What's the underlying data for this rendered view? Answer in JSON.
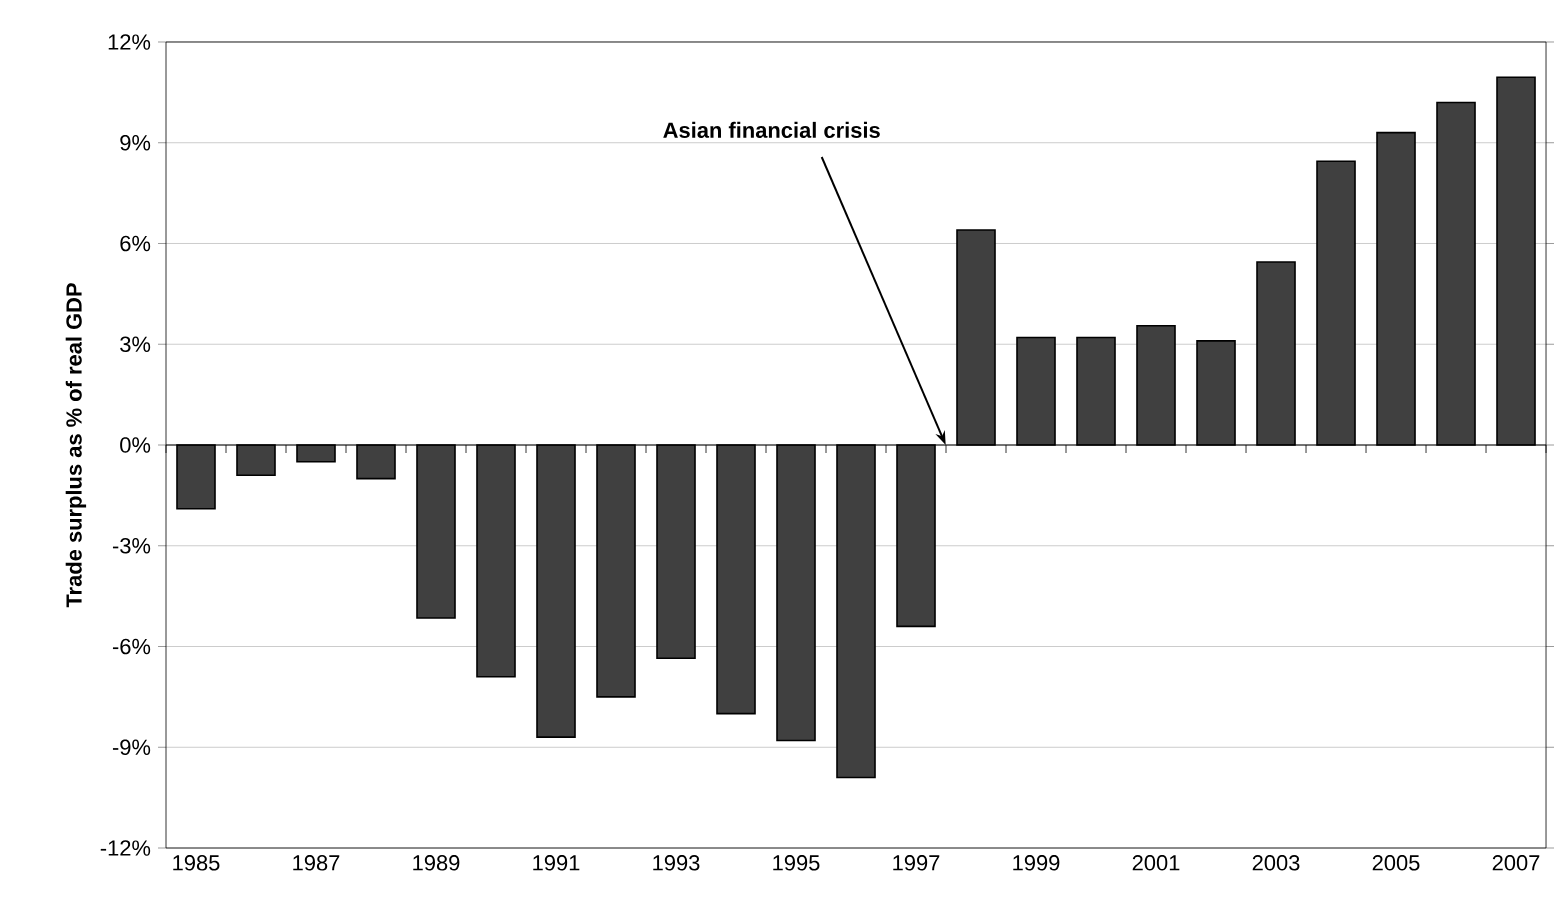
{
  "chart_data": {
    "type": "bar",
    "ylabel": "Trade surplus as % of real GDP",
    "categories": [
      "1985",
      null,
      "1987",
      null,
      "1989",
      null,
      "1991",
      null,
      "1993",
      null,
      "1995",
      null,
      "1997",
      null,
      "1999",
      null,
      "2001",
      null,
      "2003",
      null,
      "2005",
      null,
      "2007"
    ],
    "values": [
      -1.9,
      -0.9,
      -0.5,
      -1.0,
      -5.15,
      -6.9,
      -8.7,
      -7.5,
      -6.35,
      -8.0,
      -8.8,
      -9.9,
      -5.4,
      6.4,
      3.2,
      3.2,
      3.55,
      3.1,
      5.45,
      8.45,
      9.3,
      10.2,
      10.95
    ],
    "color": "#404040",
    "ylim": [
      -12,
      12
    ],
    "yticks": [
      {
        "value": -12,
        "label": "-12%"
      },
      {
        "value": -9,
        "label": "-9%"
      },
      {
        "value": -6,
        "label": "-6%"
      },
      {
        "value": -3,
        "label": "-3%"
      },
      {
        "value": 0,
        "label": "0%"
      },
      {
        "value": 3,
        "label": "3%"
      },
      {
        "value": 6,
        "label": "6%"
      },
      {
        "value": 9,
        "label": "9%"
      },
      {
        "value": 12,
        "label": "12%"
      }
    ],
    "grid": "y",
    "annotations": [
      "Asian financial crisis"
    ]
  }
}
